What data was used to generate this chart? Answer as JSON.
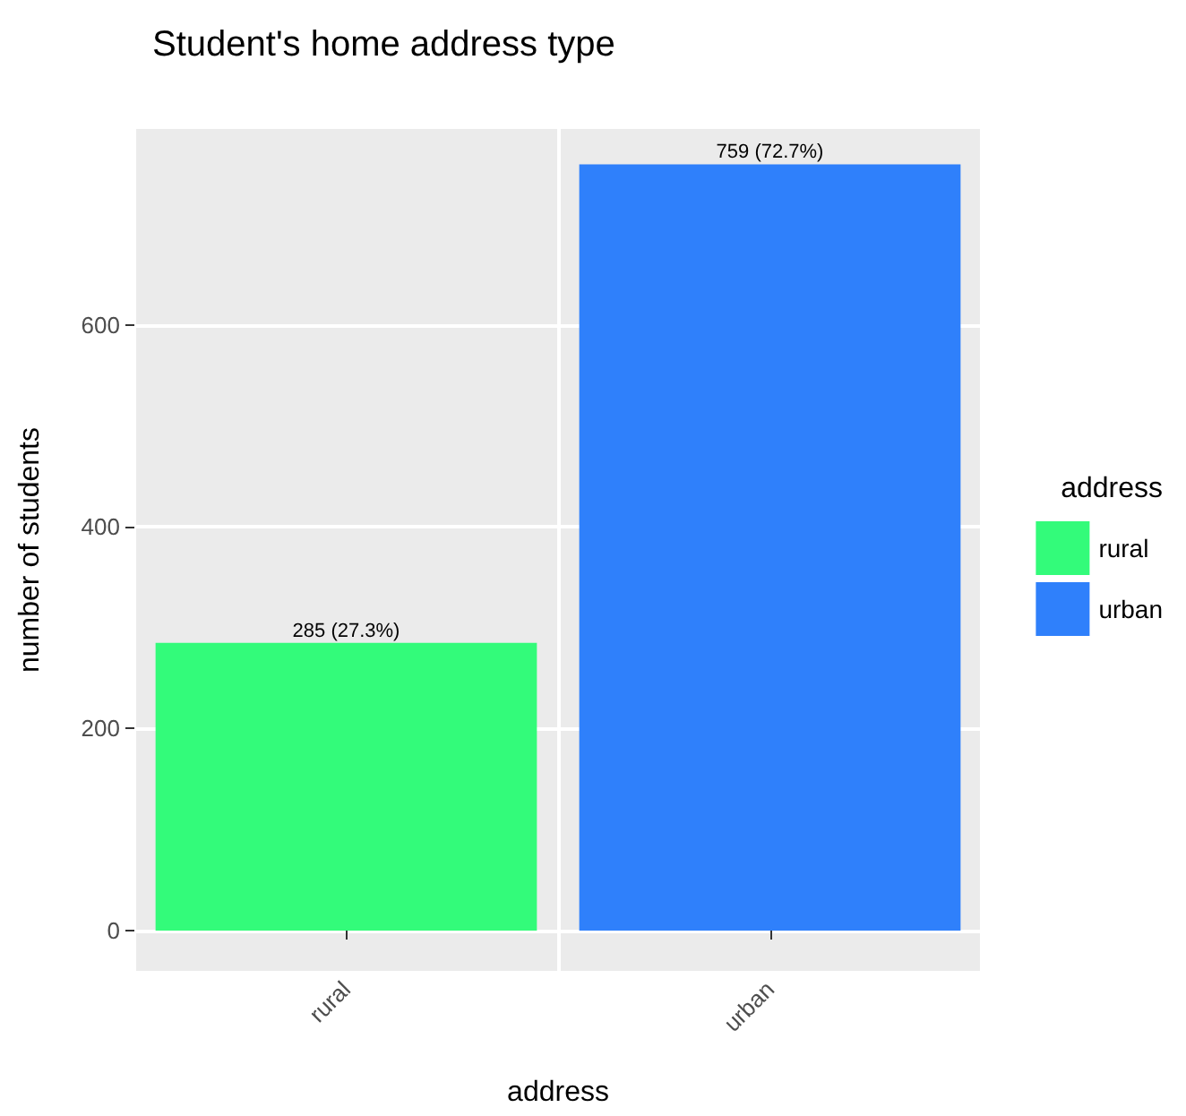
{
  "chart_data": {
    "type": "bar",
    "title": "Student's home address type",
    "xlabel": "address",
    "ylabel": "number of students",
    "legend_title": "address",
    "categories": [
      "rural",
      "urban"
    ],
    "series": [
      {
        "name": "rural",
        "color": "#33fb7a",
        "values": [
          285,
          null
        ],
        "value_labels": [
          "285 (27.3%)",
          null
        ]
      },
      {
        "name": "urban",
        "color": "#2f80fb",
        "values": [
          null,
          759
        ],
        "value_labels": [
          null,
          "759 (72.7%)"
        ]
      }
    ],
    "ylim": [
      -40,
      794
    ],
    "yticks": [
      0,
      200,
      400,
      600
    ],
    "grid": true,
    "legend": "right"
  }
}
